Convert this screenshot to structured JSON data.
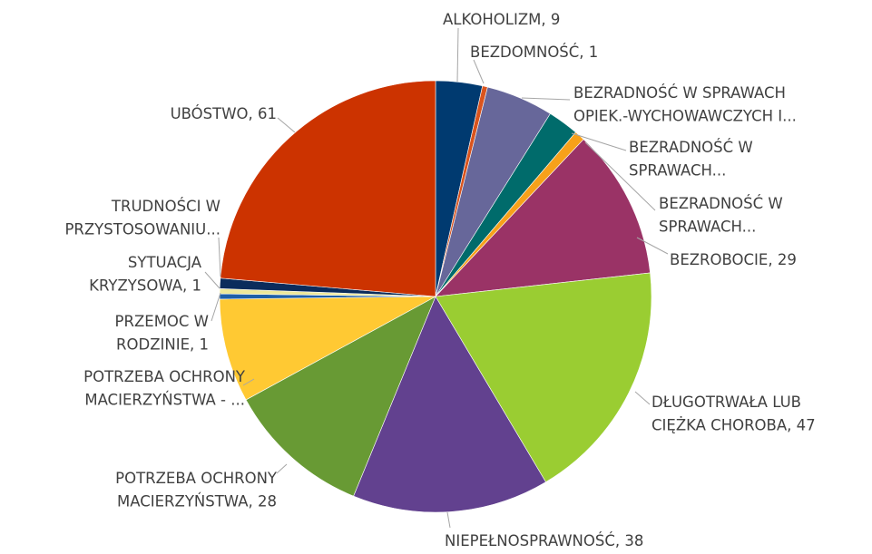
{
  "chart_data": {
    "type": "pie",
    "labels": [
      [
        "ALKOHOLIZM, 9"
      ],
      [
        "BEZDOMNOŚĆ, 1"
      ],
      [
        "BEZRADNOŚĆ W SPRAWACH",
        "OPIEK.-WYCHOWAWCZYCH I..."
      ],
      [
        "BEZRADNOŚĆ W",
        "SPRAWACH..."
      ],
      [
        "BEZRADNOŚĆ W",
        "SPRAWACH..."
      ],
      [
        "BEZROBOCIE, 29"
      ],
      [
        "DŁUGOTRWAŁA LUB",
        "CIĘŻKA CHOROBA, 47"
      ],
      [
        "NIEPEŁNOSPRAWNOŚĆ, 38"
      ],
      [
        "POTRZEBA OCHRONY",
        "MACIERZYŃSTWA, 28"
      ],
      [
        "POTRZEBA OCHRONY",
        "MACIERZYŃSTWA - ..."
      ],
      [
        "PRZEMOC W",
        "RODZINIE, 1"
      ],
      [
        "SYTUACJA",
        "KRYZYSOWA, 1"
      ],
      [
        "TRUDNOŚCI W",
        "PRZYSTOSOWANIU..."
      ],
      [
        "UBÓSTWO, 61"
      ]
    ],
    "values": [
      9,
      1,
      13,
      6,
      2,
      29,
      47,
      38,
      28,
      20,
      1,
      1,
      2,
      61
    ],
    "colors": [
      "#003a70",
      "#d9541e",
      "#67679a",
      "#006b6b",
      "#f7a11a",
      "#9a3366",
      "#9acd32",
      "#62418f",
      "#689a34",
      "#ffc933",
      "#1f5fa8",
      "#eee89a",
      "#0b2c5c",
      "#cc3300"
    ]
  }
}
